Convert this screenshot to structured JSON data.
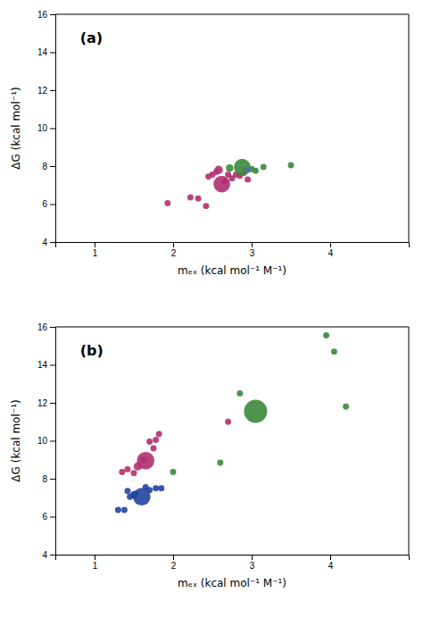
{
  "chart_data": [
    {
      "type": "scatter",
      "title": "(a)",
      "xlabel": "mₑₓ (kcal mol⁻¹ M⁻¹)",
      "ylabel": "ΔG (kcal mol⁻¹)",
      "x": [
        1.93,
        2.22,
        2.32,
        2.42,
        2.45,
        2.5,
        2.55,
        2.58,
        2.62,
        2.65,
        2.7,
        2.75,
        2.8,
        2.85,
        2.9,
        2.92,
        2.95,
        2.72,
        2.88,
        3.0,
        3.05,
        3.15,
        3.5,
        2.95
      ],
      "values": [
        6.05,
        6.35,
        6.3,
        5.9,
        7.45,
        7.55,
        7.7,
        7.8,
        7.05,
        7.2,
        7.55,
        7.35,
        7.55,
        7.5,
        7.65,
        7.75,
        7.3,
        7.9,
        7.95,
        7.85,
        7.75,
        7.95,
        8.05,
        7.8
      ],
      "sizes": [
        25,
        25,
        25,
        25,
        25,
        25,
        25,
        45,
        180,
        25,
        25,
        25,
        25,
        25,
        25,
        25,
        25,
        35,
        180,
        25,
        25,
        25,
        25,
        25
      ],
      "colors": [
        "#b03070",
        "#b03070",
        "#b03070",
        "#b03070",
        "#b03070",
        "#b03070",
        "#b03070",
        "#b03070",
        "#b03070",
        "#b03070",
        "#b03070",
        "#b03070",
        "#b03070",
        "#b03070",
        "#b03070",
        "#b03070",
        "#b03070",
        "#3a8a3a",
        "#3a8a3a",
        "#3a8a3a",
        "#3a8a3a",
        "#3a8a3a",
        "#3a8a3a",
        "#5070b0"
      ],
      "xlim": [
        0.5,
        5.0
      ],
      "ylim": [
        4,
        16
      ],
      "xticks": [
        1,
        2,
        3,
        4
      ],
      "yticks": [
        4,
        6,
        8,
        10,
        12,
        14,
        16
      ]
    },
    {
      "type": "scatter",
      "title": "(b)",
      "xlabel": "mₑₓ (kcal mol⁻¹ M⁻¹)",
      "ylabel": "ΔG (kcal mol⁻¹)",
      "x": [
        1.3,
        1.38,
        1.42,
        1.45,
        1.5,
        1.52,
        1.6,
        1.65,
        1.7,
        1.78,
        1.85,
        1.35,
        1.42,
        1.5,
        1.55,
        1.62,
        1.65,
        1.7,
        1.75,
        1.78,
        1.82,
        2.0,
        2.6,
        2.7,
        2.85,
        3.05,
        3.95,
        4.05,
        4.2
      ],
      "values": [
        6.35,
        6.35,
        7.35,
        7.05,
        7.15,
        7.2,
        7.05,
        7.55,
        7.4,
        7.5,
        7.5,
        8.35,
        8.5,
        8.3,
        8.65,
        9.0,
        8.95,
        9.95,
        9.6,
        10.05,
        10.35,
        8.35,
        8.85,
        11.0,
        12.5,
        11.55,
        15.55,
        14.7,
        11.8
      ],
      "sizes": [
        25,
        25,
        25,
        25,
        35,
        25,
        200,
        25,
        25,
        25,
        25,
        25,
        25,
        25,
        45,
        25,
        200,
        25,
        25,
        25,
        25,
        25,
        25,
        25,
        25,
        350,
        25,
        25,
        25
      ],
      "colors": [
        "#2244a0",
        "#2244a0",
        "#2244a0",
        "#2244a0",
        "#2244a0",
        "#2244a0",
        "#2244a0",
        "#2244a0",
        "#2244a0",
        "#2244a0",
        "#2244a0",
        "#b03070",
        "#b03070",
        "#b03070",
        "#b03070",
        "#b03070",
        "#b03070",
        "#b03070",
        "#b03070",
        "#b03070",
        "#b03070",
        "#3a8a3a",
        "#3a8a3a",
        "#b03070",
        "#3a8a3a",
        "#3a8a3a",
        "#3a8a3a",
        "#3a8a3a",
        "#3a8a3a"
      ],
      "xlim": [
        0.5,
        5.0
      ],
      "ylim": [
        4,
        16
      ],
      "xticks": [
        1,
        2,
        3,
        4
      ],
      "yticks": [
        4,
        6,
        8,
        10,
        12,
        14,
        16
      ]
    }
  ]
}
